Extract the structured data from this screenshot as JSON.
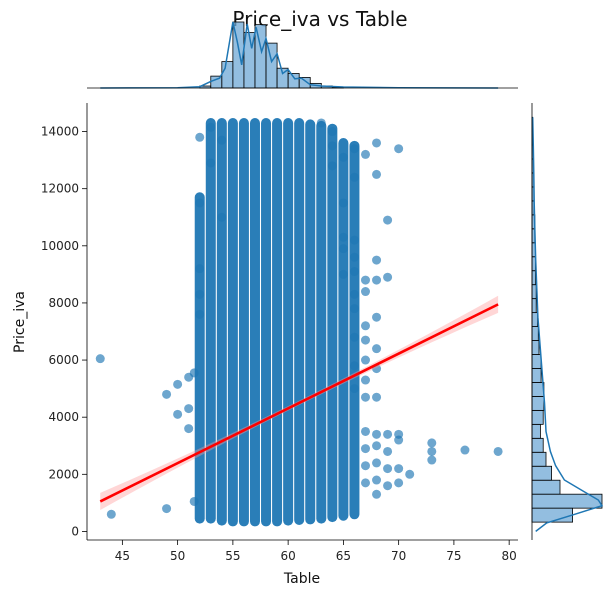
{
  "chart_data": {
    "type": "scatter",
    "title": "Price_iva vs Table",
    "xlabel": "Table",
    "ylabel": "Price_iva",
    "xlim": [
      41.8,
      80.8
    ],
    "ylim": [
      -300,
      15000
    ],
    "x_ticks": [
      45,
      50,
      55,
      60,
      65,
      70,
      75,
      80
    ],
    "y_ticks": [
      0,
      2000,
      4000,
      6000,
      8000,
      10000,
      12000,
      14000
    ],
    "grid": false,
    "colors": {
      "points": "#1f77b4",
      "regression": "#ff0000",
      "ci_band": "#ffb3b3",
      "hist_fill": "#6fa8d6",
      "kde": "#1f77b4"
    },
    "regression": {
      "x": [
        43,
        79
      ],
      "y": [
        1050,
        7950
      ]
    },
    "column_ranges": [
      {
        "x": 52,
        "ymin": 450,
        "ymax": 11700
      },
      {
        "x": 53,
        "ymin": 450,
        "ymax": 14300
      },
      {
        "x": 54,
        "ymin": 380,
        "ymax": 14300
      },
      {
        "x": 55,
        "ymin": 350,
        "ymax": 14300
      },
      {
        "x": 56,
        "ymin": 350,
        "ymax": 14300
      },
      {
        "x": 57,
        "ymin": 350,
        "ymax": 14300
      },
      {
        "x": 58,
        "ymin": 350,
        "ymax": 14300
      },
      {
        "x": 59,
        "ymin": 350,
        "ymax": 14300
      },
      {
        "x": 60,
        "ymin": 380,
        "ymax": 14300
      },
      {
        "x": 61,
        "ymin": 400,
        "ymax": 14300
      },
      {
        "x": 62,
        "ymin": 420,
        "ymax": 14250
      },
      {
        "x": 63,
        "ymin": 450,
        "ymax": 14200
      },
      {
        "x": 64,
        "ymin": 500,
        "ymax": 14100
      },
      {
        "x": 65,
        "ymin": 550,
        "ymax": 13600
      },
      {
        "x": 66,
        "ymin": 600,
        "ymax": 13500
      }
    ],
    "points": [
      [
        43,
        6050
      ],
      [
        44,
        600
      ],
      [
        49,
        4800
      ],
      [
        49,
        800
      ],
      [
        50,
        5150
      ],
      [
        50,
        4100
      ],
      [
        51,
        5400
      ],
      [
        51,
        4300
      ],
      [
        51,
        3600
      ],
      [
        51.5,
        1050
      ],
      [
        51.5,
        5550
      ],
      [
        52,
        13800
      ],
      [
        52,
        11500
      ],
      [
        52,
        9200
      ],
      [
        52,
        8300
      ],
      [
        52,
        7600
      ],
      [
        53,
        14150
      ],
      [
        53,
        12900
      ],
      [
        54,
        11000
      ],
      [
        54,
        13700
      ],
      [
        63,
        14300
      ],
      [
        64,
        14000
      ],
      [
        64,
        13500
      ],
      [
        64,
        12800
      ],
      [
        65,
        13100
      ],
      [
        65,
        11500
      ],
      [
        65,
        10300
      ],
      [
        65,
        9900
      ],
      [
        65,
        9000
      ],
      [
        66,
        13400
      ],
      [
        66,
        12400
      ],
      [
        66,
        10200
      ],
      [
        66,
        9600
      ],
      [
        66,
        9100
      ],
      [
        66,
        8300
      ],
      [
        66,
        7800
      ],
      [
        66,
        6800
      ],
      [
        66,
        5800
      ],
      [
        66,
        5000
      ],
      [
        67,
        13200
      ],
      [
        67,
        8800
      ],
      [
        67,
        8400
      ],
      [
        67,
        7200
      ],
      [
        67,
        6700
      ],
      [
        67,
        6000
      ],
      [
        67,
        5300
      ],
      [
        67,
        4700
      ],
      [
        67,
        3500
      ],
      [
        67,
        2900
      ],
      [
        67,
        2300
      ],
      [
        67,
        1700
      ],
      [
        68,
        13600
      ],
      [
        68,
        12500
      ],
      [
        68,
        9500
      ],
      [
        68,
        8800
      ],
      [
        68,
        7500
      ],
      [
        68,
        6400
      ],
      [
        68,
        5700
      ],
      [
        68,
        4700
      ],
      [
        68,
        3400
      ],
      [
        68,
        3000
      ],
      [
        68,
        2400
      ],
      [
        68,
        1800
      ],
      [
        68,
        1300
      ],
      [
        69,
        10900
      ],
      [
        69,
        8900
      ],
      [
        69,
        3400
      ],
      [
        69,
        2800
      ],
      [
        69,
        2200
      ],
      [
        69,
        1600
      ],
      [
        70,
        13400
      ],
      [
        70,
        3400
      ],
      [
        70,
        3200
      ],
      [
        70,
        2200
      ],
      [
        70,
        1700
      ],
      [
        71,
        2000
      ],
      [
        73,
        3100
      ],
      [
        73,
        2800
      ],
      [
        73,
        2500
      ],
      [
        76,
        2850
      ],
      [
        79,
        2800
      ]
    ],
    "x_marginal_hist": [
      {
        "x0": 52,
        "x1": 53,
        "count": 3
      },
      {
        "x0": 53,
        "x1": 54,
        "count": 18
      },
      {
        "x0": 54,
        "x1": 55,
        "count": 40
      },
      {
        "x0": 55,
        "x1": 56,
        "count": 100
      },
      {
        "x0": 56,
        "x1": 57,
        "count": 84
      },
      {
        "x0": 57,
        "x1": 58,
        "count": 96
      },
      {
        "x0": 58,
        "x1": 59,
        "count": 68
      },
      {
        "x0": 59,
        "x1": 60,
        "count": 30
      },
      {
        "x0": 60,
        "x1": 61,
        "count": 22
      },
      {
        "x0": 61,
        "x1": 62,
        "count": 16
      },
      {
        "x0": 62,
        "x1": 63,
        "count": 7
      },
      {
        "x0": 63,
        "x1": 64,
        "count": 3
      },
      {
        "x0": 64,
        "x1": 65,
        "count": 1
      }
    ],
    "x_kde": [
      [
        43,
        0
      ],
      [
        50,
        0.5
      ],
      [
        52,
        2
      ],
      [
        53,
        10
      ],
      [
        53.8,
        15
      ],
      [
        54.3,
        30
      ],
      [
        55,
        100
      ],
      [
        55.4,
        70
      ],
      [
        55.8,
        35
      ],
      [
        56.3,
        97
      ],
      [
        56.7,
        60
      ],
      [
        57.1,
        92
      ],
      [
        57.6,
        55
      ],
      [
        58,
        75
      ],
      [
        58.5,
        40
      ],
      [
        59,
        52
      ],
      [
        59.5,
        22
      ],
      [
        60,
        28
      ],
      [
        60.6,
        14
      ],
      [
        61.2,
        15
      ],
      [
        62,
        5
      ],
      [
        63,
        3
      ],
      [
        65,
        1.5
      ],
      [
        70,
        0.5
      ],
      [
        79,
        0
      ]
    ],
    "y_marginal_hist": [
      {
        "y0": 326,
        "y1": 815,
        "count": 58
      },
      {
        "y0": 815,
        "y1": 1304,
        "count": 100
      },
      {
        "y0": 1304,
        "y1": 1793,
        "count": 40
      },
      {
        "y0": 1793,
        "y1": 2282,
        "count": 28
      },
      {
        "y0": 2282,
        "y1": 2771,
        "count": 20
      },
      {
        "y0": 2771,
        "y1": 3260,
        "count": 16
      },
      {
        "y0": 3260,
        "y1": 3749,
        "count": 12
      },
      {
        "y0": 3749,
        "y1": 4238,
        "count": 16
      },
      {
        "y0": 4238,
        "y1": 4727,
        "count": 17
      },
      {
        "y0": 4727,
        "y1": 5216,
        "count": 17
      },
      {
        "y0": 5216,
        "y1": 5705,
        "count": 13
      },
      {
        "y0": 5705,
        "y1": 6194,
        "count": 13
      },
      {
        "y0": 6194,
        "y1": 6683,
        "count": 10
      },
      {
        "y0": 6683,
        "y1": 7172,
        "count": 9
      },
      {
        "y0": 7172,
        "y1": 7661,
        "count": 8
      },
      {
        "y0": 7661,
        "y1": 8150,
        "count": 6
      },
      {
        "y0": 8150,
        "y1": 8639,
        "count": 6
      },
      {
        "y0": 8639,
        "y1": 9128,
        "count": 5
      },
      {
        "y0": 9128,
        "y1": 9617,
        "count": 5
      },
      {
        "y0": 9617,
        "y1": 10106,
        "count": 5
      },
      {
        "y0": 10106,
        "y1": 10595,
        "count": 4
      },
      {
        "y0": 10595,
        "y1": 11084,
        "count": 4
      },
      {
        "y0": 11084,
        "y1": 11573,
        "count": 3
      },
      {
        "y0": 11573,
        "y1": 12062,
        "count": 3
      },
      {
        "y0": 12062,
        "y1": 12551,
        "count": 3
      },
      {
        "y0": 12551,
        "y1": 13040,
        "count": 2
      },
      {
        "y0": 13040,
        "y1": 13529,
        "count": 2
      },
      {
        "y0": 13529,
        "y1": 14018,
        "count": 1.5
      },
      {
        "y0": 14018,
        "y1": 14500,
        "count": 1
      }
    ],
    "y_kde": [
      [
        0,
        5
      ],
      [
        300,
        20
      ],
      [
        600,
        58
      ],
      [
        900,
        95
      ],
      [
        1100,
        90
      ],
      [
        1400,
        70
      ],
      [
        1800,
        44
      ],
      [
        2300,
        32
      ],
      [
        2800,
        25
      ],
      [
        3500,
        19
      ],
      [
        4500,
        17
      ],
      [
        5500,
        14
      ],
      [
        6500,
        11
      ],
      [
        7500,
        8
      ],
      [
        8500,
        6.5
      ],
      [
        9500,
        5
      ],
      [
        10500,
        4
      ],
      [
        11500,
        3
      ],
      [
        12500,
        2.5
      ],
      [
        13500,
        1.8
      ],
      [
        14500,
        1
      ]
    ]
  }
}
